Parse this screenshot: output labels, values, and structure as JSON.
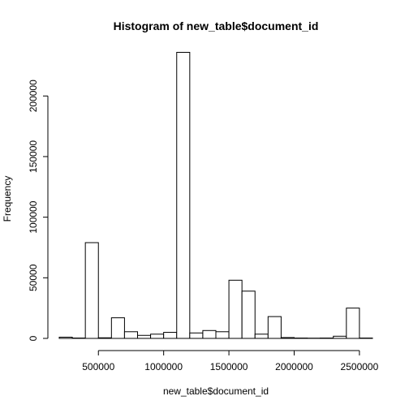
{
  "chart_data": {
    "type": "bar",
    "title": "Histogram of new_table$document_id",
    "xlabel": "new_table$document_id",
    "ylabel": "Frequency",
    "x_ticks": [
      500000,
      1000000,
      1500000,
      2000000,
      2500000
    ],
    "x_tick_labels": [
      "500000",
      "1000000",
      "1500000",
      "2000000",
      "2500000"
    ],
    "y_ticks": [
      0,
      50000,
      100000,
      150000,
      200000
    ],
    "y_tick_labels": [
      "0",
      "50000",
      "100000",
      "150000",
      "200000"
    ],
    "xlim": [
      200000,
      2600000
    ],
    "ylim": [
      0,
      237000
    ],
    "bin_width": 100000,
    "bin_starts": [
      200000,
      300000,
      400000,
      500000,
      600000,
      700000,
      800000,
      900000,
      1000000,
      1100000,
      1200000,
      1300000,
      1400000,
      1500000,
      1600000,
      1700000,
      1800000,
      1900000,
      2000000,
      2100000,
      2200000,
      2300000,
      2400000,
      2500000
    ],
    "values": [
      1000,
      300,
      79000,
      500,
      17000,
      5500,
      2500,
      3500,
      5000,
      236000,
      4500,
      6500,
      5500,
      48000,
      39000,
      3500,
      18000,
      700,
      300,
      200,
      300,
      1800,
      25000,
      300
    ],
    "grid": false,
    "bar_fill": "#ffffff",
    "bar_stroke": "#000000"
  }
}
